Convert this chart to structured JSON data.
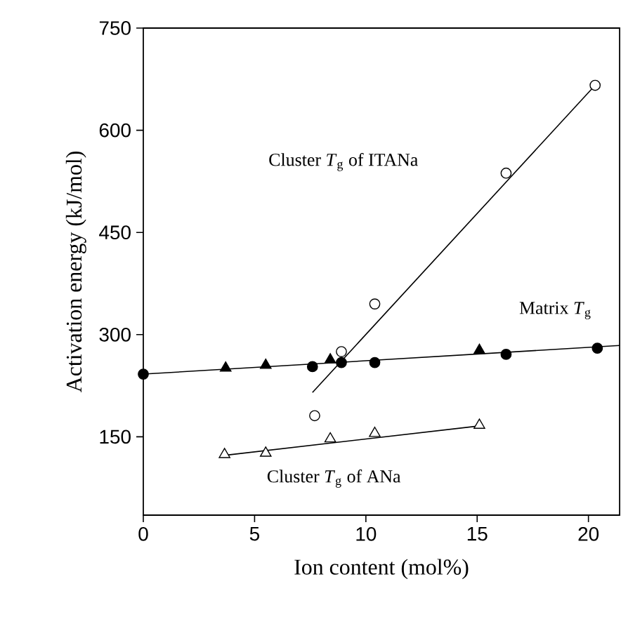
{
  "chart_data": {
    "type": "scatter",
    "xlabel": "Ion content (mol%)",
    "ylabel": "Activation energy (kJ/mol)",
    "xlim": [
      0,
      21.4
    ],
    "ylim": [
      35,
      750
    ],
    "xticks": [
      0,
      5,
      10,
      15,
      20
    ],
    "yticks": [
      150,
      300,
      450,
      600,
      750
    ],
    "grid": false,
    "legend": false,
    "series": [
      {
        "type": "line",
        "marker": "none",
        "color": "#000000",
        "x": [
          0,
          21.4
        ],
        "values": [
          242,
          284
        ]
      },
      {
        "type": "line",
        "marker": "none",
        "color": "#000000",
        "x": [
          7.6,
          20.3
        ],
        "values": [
          215,
          666
        ]
      },
      {
        "type": "line",
        "marker": "none",
        "color": "#000000",
        "x": [
          3.7,
          15.1
        ],
        "values": [
          123,
          166
        ]
      },
      {
        "marker": "circle",
        "color": "#000000",
        "x": [
          0,
          7.6,
          8.9,
          10.4,
          16.3,
          20.4
        ],
        "values": [
          242,
          253,
          259,
          259,
          271,
          280
        ]
      },
      {
        "marker": "triangle",
        "color": "#000000",
        "x": [
          3.7,
          5.5,
          8.4,
          15.1
        ],
        "values": [
          251,
          255,
          263,
          277
        ]
      },
      {
        "marker": "circle",
        "color": "#ffffff",
        "x": [
          7.7,
          8.9,
          10.4,
          16.3,
          20.3
        ],
        "values": [
          181,
          275,
          345,
          537,
          666
        ]
      },
      {
        "marker": "triangle",
        "color": "#ffffff",
        "x": [
          3.65,
          5.5,
          8.4,
          10.4,
          15.1
        ],
        "values": [
          124,
          126,
          147,
          155,
          167
        ]
      }
    ],
    "annotations": [
      "Cluster *T*$_{g}$ of ITANa",
      "Matrix *T*$_{g}$",
      "Cluster *T*$_{g}$ of ANa"
    ]
  }
}
